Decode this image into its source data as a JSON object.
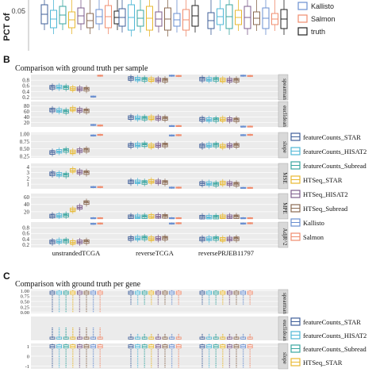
{
  "section_a": {
    "ylabel": "PCT of",
    "ytick": "0.05",
    "legend": [
      {
        "label": "Kallisto",
        "color": "#6a8fd0"
      },
      {
        "label": "Salmon",
        "color": "#f08c6e"
      },
      {
        "label": "truth",
        "color": "#222222"
      }
    ]
  },
  "section_b": {
    "letter": "B",
    "title": "Comparison with ground truth per sample"
  },
  "section_c": {
    "letter": "C",
    "title": "Comparison with ground truth per gene"
  },
  "colors": {
    "featureCounts_STAR": "#3f5f99",
    "featureCounts_HISAT2": "#4fb7d6",
    "featureCounts_Subread": "#3aa6a0",
    "HTSeq_STAR": "#e8b830",
    "HTSeq_HISAT2": "#7d5d8c",
    "HTSeq_Subread": "#8a6a52",
    "Kallisto": "#6a8fd0",
    "Salmon": "#f08c6e",
    "panel_bg": "#ebebeb",
    "strip_bg": "#d9d9d9"
  },
  "chart_data": [
    {
      "type": "box",
      "panel": "B",
      "title": "Comparison with ground truth per sample",
      "categories": [
        "unstrandedTCGA",
        "reverseTCGA",
        "reversePRJEB11797"
      ],
      "series": [
        {
          "name": "featureCounts_STAR"
        },
        {
          "name": "featureCounts_HISAT2"
        },
        {
          "name": "featureCounts_Subread"
        },
        {
          "name": "HTSeq_STAR"
        },
        {
          "name": "HTSeq_HISAT2"
        },
        {
          "name": "HTSeq_Subread"
        },
        {
          "name": "Kallisto"
        },
        {
          "name": "Salmon"
        }
      ],
      "facets": [
        {
          "label": "spearman",
          "yticks": [
            "0.8",
            "0.6",
            "0.4",
            "0.2"
          ],
          "ylim": [
            0.1,
            1.0
          ],
          "medians": [
            [
              0.55,
              0.56,
              0.54,
              0.5,
              0.49,
              0.48,
              0.22,
              0.96
            ],
            [
              0.86,
              0.84,
              0.83,
              0.82,
              0.81,
              0.8,
              0.96,
              0.95
            ],
            [
              0.84,
              0.83,
              0.83,
              0.81,
              0.8,
              0.8,
              0.96,
              0.95
            ]
          ]
        },
        {
          "label": "euclidean",
          "yticks": [
            "80",
            "60",
            "40",
            "20"
          ],
          "ylim": [
            5,
            95
          ],
          "medians": [
            [
              65,
              63,
              60,
              68,
              64,
              62,
              12,
              10
            ],
            [
              38,
              37,
              36,
              37,
              36,
              35,
              8,
              8
            ],
            [
              32,
              31,
              31,
              32,
              31,
              30,
              6,
              6
            ]
          ]
        },
        {
          "label": "slope",
          "yticks": [
            "1.00",
            "0.75",
            "0.50",
            "0.25"
          ],
          "ylim": [
            0.2,
            1.05
          ],
          "medians": [
            [
              0.38,
              0.42,
              0.45,
              0.4,
              0.44,
              0.46,
              0.95,
              0.97
            ],
            [
              0.62,
              0.63,
              0.64,
              0.6,
              0.62,
              0.63,
              0.95,
              0.96
            ],
            [
              0.6,
              0.62,
              0.63,
              0.59,
              0.61,
              0.62,
              0.96,
              0.97
            ]
          ]
        },
        {
          "label": "MSE",
          "yticks": [
            "4",
            "3",
            "2",
            "1"
          ],
          "ylim": [
            0.2,
            4.6
          ],
          "medians": [
            [
              2.8,
              2.7,
              2.6,
              3.4,
              3.1,
              3.0,
              0.5,
              0.5
            ],
            [
              1.4,
              1.4,
              1.3,
              1.5,
              1.4,
              1.3,
              0.4,
              0.4
            ],
            [
              1.1,
              1.1,
              1.0,
              1.2,
              1.1,
              1.0,
              0.35,
              0.35
            ]
          ]
        },
        {
          "label": "MPE",
          "yticks": [
            "60",
            "40",
            "20"
          ],
          "ylim": [
            0,
            70
          ],
          "medians": [
            [
              8,
              9,
              10,
              25,
              32,
              45,
              2,
              2
            ],
            [
              6,
              6,
              6,
              7,
              7,
              7,
              2,
              2
            ],
            [
              5,
              5,
              5,
              6,
              6,
              6,
              2,
              2
            ]
          ]
        },
        {
          "label": "AdjR^2",
          "yticks": [
            "0.8",
            "0.6",
            "0.4",
            "0.2"
          ],
          "ylim": [
            0.1,
            1.0
          ],
          "medians": [
            [
              0.3,
              0.32,
              0.33,
              0.28,
              0.3,
              0.31,
              0.94,
              0.95
            ],
            [
              0.42,
              0.43,
              0.44,
              0.41,
              0.42,
              0.43,
              0.95,
              0.96
            ],
            [
              0.4,
              0.41,
              0.42,
              0.39,
              0.4,
              0.41,
              0.95,
              0.96
            ]
          ]
        }
      ]
    },
    {
      "type": "box",
      "panel": "C",
      "title": "Comparison with ground truth per gene",
      "facets": [
        {
          "label": "spearman",
          "yticks": [
            "1.00",
            "0.75",
            "0.50",
            "0.25",
            "0.00"
          ],
          "ylim": [
            -0.05,
            1.05
          ]
        },
        {
          "label": "euclidean",
          "yticks": [],
          "ylim": [
            0,
            1
          ]
        },
        {
          "label": "slope",
          "yticks": [
            "1",
            "0",
            "-1"
          ],
          "ylim": [
            -1.3,
            1.3
          ]
        }
      ],
      "legend": [
        "featureCounts_STAR",
        "featureCounts_HISAT2",
        "featureCounts_Subread",
        "HTSeq_STAR"
      ]
    }
  ]
}
